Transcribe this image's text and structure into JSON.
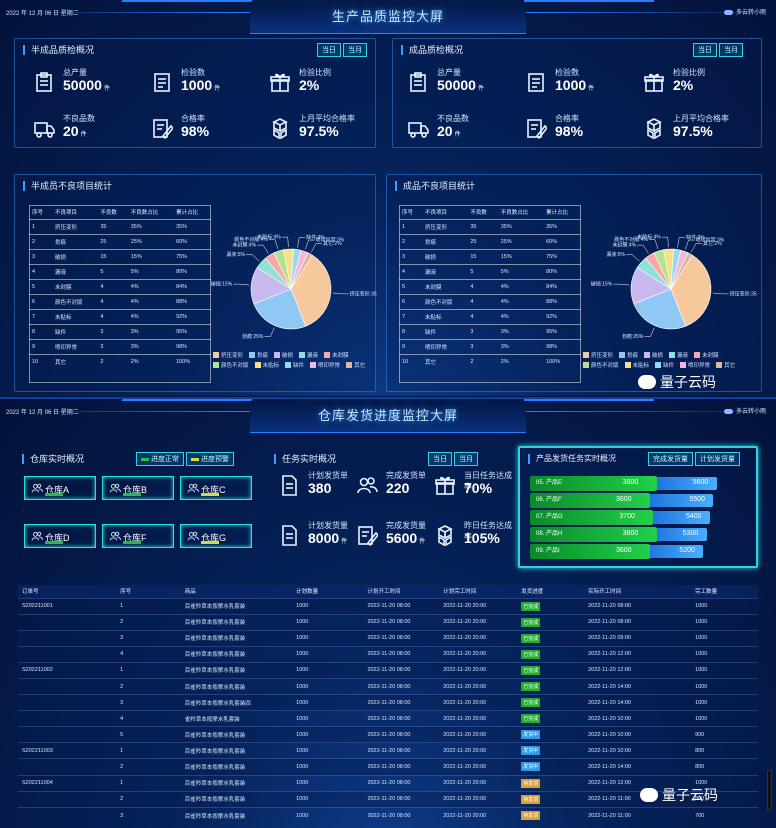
{
  "s1": {
    "date": "2022 年 12 月 06 日   星期二",
    "weather": "多云转小雨",
    "title": "生产品质监控大屏",
    "semi_overview": {
      "title": "半成品质检概况",
      "tabs": [
        "当日",
        "当月"
      ],
      "kpis": [
        {
          "label": "总产量",
          "value": "50000",
          "unit": "件",
          "icon": "clipboard-icon"
        },
        {
          "label": "检验数",
          "value": "1000",
          "unit": "件",
          "icon": "list-icon"
        },
        {
          "label": "检验比例",
          "value": "2%",
          "unit": "",
          "icon": "gift-icon"
        },
        {
          "label": "不良品数",
          "value": "20",
          "unit": "件",
          "icon": "truck-icon"
        },
        {
          "label": "合格率",
          "value": "98%",
          "unit": "",
          "icon": "edit-doc-icon"
        },
        {
          "label": "上月平均合格率",
          "value": "97.5%",
          "unit": "",
          "icon": "boxes-icon"
        }
      ]
    },
    "fin_overview": {
      "title": "成品质检概况",
      "tabs": [
        "当日",
        "当月"
      ],
      "kpis": [
        {
          "label": "总产量",
          "value": "50000",
          "unit": "件",
          "icon": "clipboard-icon"
        },
        {
          "label": "检验数",
          "value": "1000",
          "unit": "件",
          "icon": "list-icon"
        },
        {
          "label": "检验比例",
          "value": "2%",
          "unit": "",
          "icon": "gift-icon"
        },
        {
          "label": "不良品数",
          "value": "20",
          "unit": "件",
          "icon": "truck-icon"
        },
        {
          "label": "合格率",
          "value": "98%",
          "unit": "",
          "icon": "edit-doc-icon"
        },
        {
          "label": "上月平均合格率",
          "value": "97.5%",
          "unit": "",
          "icon": "boxes-icon"
        }
      ]
    },
    "semi_defects": {
      "title": "半成员不良项目统计"
    },
    "fin_defects": {
      "title": "成品不良项目统计"
    },
    "defect_headers": [
      "序号",
      "不良项目",
      "不良数",
      "不良数占比",
      "累计占比"
    ],
    "defect_rows": [
      [
        "1",
        "挤压变形",
        "35",
        "35%",
        "35%"
      ],
      [
        "2",
        "划痕",
        "25",
        "25%",
        "60%"
      ],
      [
        "3",
        "破损",
        "15",
        "15%",
        "75%"
      ],
      [
        "4",
        "漏液",
        "5",
        "5%",
        "80%"
      ],
      [
        "5",
        "未封膜",
        "4",
        "4%",
        "84%"
      ],
      [
        "6",
        "颜色不对版",
        "4",
        "4%",
        "88%"
      ],
      [
        "7",
        "未贴标",
        "4",
        "4%",
        "92%"
      ],
      [
        "8",
        "缺件",
        "3",
        "3%",
        "95%"
      ],
      [
        "9",
        "喷印异常",
        "3",
        "3%",
        "98%"
      ],
      [
        "10",
        "其它",
        "2",
        "2%",
        "100%"
      ]
    ],
    "pie_slice_labels": [
      "挤压变形:35%",
      "划痕:25%",
      "破损:15%",
      "漏液:5%",
      "未封膜:4%",
      "颜色不对版:4%",
      "未贴标:4%",
      "缺件:3%",
      "喷印异常:3%",
      "其它:2%"
    ],
    "legend": [
      "挤压变形",
      "划痕",
      "破损",
      "漏液",
      "未封膜",
      "颜色不对版",
      "未贴标",
      "缺件",
      "喷印异常",
      "其它"
    ],
    "colors": [
      "#f7c89c",
      "#8fc7f5",
      "#c9b8ee",
      "#8fe0d6",
      "#f7a9a8",
      "#b5e38d",
      "#f4e18a",
      "#9ad8f0",
      "#f5b7d9",
      "#d9b7a0"
    ],
    "watermark": "量子云码"
  },
  "chart_data": [
    {
      "type": "pie",
      "title": "半成员不良项目统计",
      "categories": [
        "挤压变形",
        "划痕",
        "破损",
        "漏液",
        "未封膜",
        "颜色不对版",
        "未贴标",
        "缺件",
        "喷印异常",
        "其它"
      ],
      "values": [
        35,
        25,
        15,
        5,
        4,
        4,
        4,
        3,
        3,
        2
      ],
      "legend": "bottom"
    },
    {
      "type": "pie",
      "title": "成品不良项目统计",
      "categories": [
        "挤压变形",
        "划痕",
        "破损",
        "漏液",
        "未封膜",
        "颜色不对版",
        "未贴标",
        "缺件",
        "喷印异常",
        "其它"
      ],
      "values": [
        35,
        25,
        15,
        5,
        4,
        4,
        4,
        3,
        3,
        2
      ],
      "legend": "bottom"
    }
  ],
  "s2": {
    "date": "2022 年 12 月 06 日   星期二",
    "weather": "多云转小雨",
    "title": "仓库发货进度监控大屏",
    "warehouse": {
      "title": "仓库实时概况",
      "legend": [
        "进度正常",
        "进度预警"
      ],
      "items": [
        {
          "name": "仓库A",
          "status": "normal"
        },
        {
          "name": "仓库B",
          "status": "normal"
        },
        {
          "name": "仓库C",
          "status": "warn"
        },
        {
          "name": "仓库D",
          "status": "normal"
        },
        {
          "name": "仓库F",
          "status": "normal"
        },
        {
          "name": "仓库G",
          "status": "warn"
        }
      ]
    },
    "task": {
      "title": "任务实时概况",
      "tabs": [
        "当日",
        "当月"
      ],
      "kpis": [
        {
          "label": "计划发货单",
          "value": "380",
          "unit": "",
          "icon": "doc-icon"
        },
        {
          "label": "完成发货单",
          "value": "220",
          "unit": "",
          "icon": "users-icon"
        },
        {
          "label": "当日任务达成率",
          "value": "70%",
          "unit": "",
          "icon": "gift-icon"
        },
        {
          "label": "计划发货量",
          "value": "8000",
          "unit": "件",
          "icon": "doc-icon"
        },
        {
          "label": "完成发货量",
          "value": "5600",
          "unit": "件",
          "icon": "edit-doc-icon"
        },
        {
          "label": "昨日任务达成率",
          "value": "105%",
          "unit": "",
          "icon": "boxes-icon"
        }
      ]
    },
    "product": {
      "title": "产品发货任务实时概况",
      "legend": [
        "完成发货量",
        "计划发货量"
      ],
      "rows": [
        {
          "name": "05. 产品E",
          "done": 3800,
          "plan": 5600
        },
        {
          "name": "06. 产品F",
          "done": 3600,
          "plan": 5500
        },
        {
          "name": "07. 产品G",
          "done": 3700,
          "plan": 5400
        },
        {
          "name": "08. 产品H",
          "done": 3800,
          "plan": 5300
        },
        {
          "name": "09. 产品I",
          "done": 3600,
          "plan": 5200
        }
      ]
    },
    "orders": {
      "headers": [
        "订单号",
        "序号",
        "商品",
        "计划数量",
        "计划开工时间",
        "计划完工时间",
        "发货进度",
        "实际开工时间",
        "完工数量"
      ],
      "rows": [
        [
          "S202211001",
          "1",
          "百雀羚草本按摩水乳套装",
          "1000",
          "2022-11-20 08:00",
          "2022-11-20 20:00",
          "已完成",
          "g",
          "2022-11-20 08:00",
          "1000"
        ],
        [
          "",
          "2",
          "百雀羚草本按摩水乳套装",
          "1000",
          "2022-11-20 08:00",
          "2022-11-20 20:00",
          "已完成",
          "g",
          "2022-11-20 08:00",
          "1000"
        ],
        [
          "",
          "3",
          "百雀羚草本按摩水乳套装",
          "1000",
          "2022-11-20 08:00",
          "2022-11-20 20:00",
          "已完成",
          "g",
          "2022-11-20 09:00",
          "1000"
        ],
        [
          "",
          "4",
          "百雀羚草本按摩水乳套装",
          "1000",
          "2022-11-20 08:00",
          "2022-11-20 20:00",
          "已完成",
          "g",
          "2022-11-20 12:00",
          "1000"
        ],
        [
          "S202211002",
          "1",
          "百雀羚草本按摩水乳套装",
          "1000",
          "2022-11-20 08:00",
          "2022-11-20 20:00",
          "已完成",
          "g",
          "2022-11-20 12:00",
          "1000"
        ],
        [
          "",
          "2",
          "百雀羚草本按摩水乳套装",
          "1000",
          "2022-11-20 08:00",
          "2022-11-20 20:00",
          "已完成",
          "g",
          "2022-11-20 14:00",
          "1000"
        ],
        [
          "",
          "3",
          "百雀羚草本按摩水乳套装四",
          "1000",
          "2022-11-20 08:00",
          "2022-11-20 20:00",
          "已完成",
          "g",
          "2022-11-20 14:00",
          "1000"
        ],
        [
          "",
          "4",
          "雀羚草本按摩水乳套装",
          "1000",
          "2022-11-20 08:00",
          "2022-11-20 20:00",
          "已完成",
          "g",
          "2022-11-20 10:00",
          "1000"
        ],
        [
          "",
          "5",
          "百雀羚草本按摩水乳套装",
          "1000",
          "2022-11-20 08:00",
          "2022-11-20 20:00",
          "发货中",
          "b",
          "2022-11-20 10:00",
          "900"
        ],
        [
          "S202211003",
          "1",
          "百雀羚草本按摩水乳套装",
          "1000",
          "2022-11-20 08:00",
          "2022-11-20 20:00",
          "发货中",
          "b",
          "2022-11-20 10:00",
          "800"
        ],
        [
          "",
          "2",
          "百雀羚草本按摩水乳套装",
          "1000",
          "2022-11-20 08:00",
          "2022-11-20 20:00",
          "发货中",
          "b",
          "2022-11-20 14:00",
          "800"
        ],
        [
          "S202211004",
          "1",
          "百雀羚草本按摩水乳套装",
          "1000",
          "2022-11-20 08:00",
          "2022-11-20 20:00",
          "待发货",
          "o",
          "2022-11-20 12:00",
          "1000"
        ],
        [
          "",
          "2",
          "百雀羚草本按摩水乳套装",
          "1000",
          "2022-11-20 08:00",
          "2022-11-20 20:00",
          "待发货",
          "o",
          "2022-11-20 11:00",
          "800"
        ],
        [
          "",
          "3",
          "百雀羚草本按摩水乳套装",
          "1000",
          "2022-11-20 08:00",
          "2022-11-20 20:00",
          "待发货",
          "o",
          "2022-11-20 11:00",
          "700"
        ]
      ]
    },
    "watermark": "量子云码"
  }
}
